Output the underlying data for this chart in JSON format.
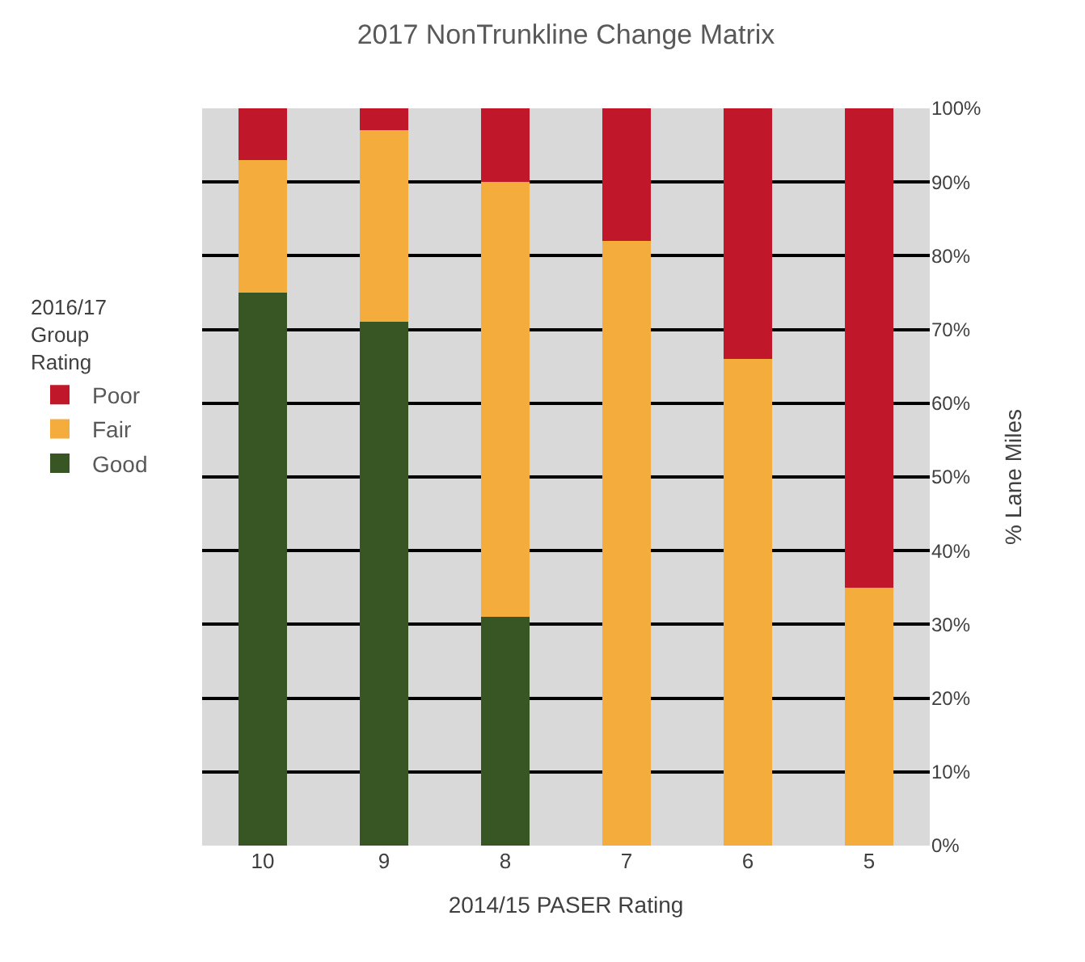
{
  "chart_data": {
    "type": "bar",
    "title": "2017 NonTrunkline Change Matrix",
    "xlabel": "2014/15 PASER Rating",
    "ylabel": "% Lane Miles",
    "legend_title": "2016/17\nGroup\nRating",
    "categories": [
      "10",
      "9",
      "8",
      "7",
      "6",
      "5"
    ],
    "stacked": true,
    "series": [
      {
        "name": "Good",
        "color": "#375623",
        "values": [
          75,
          71,
          31,
          0,
          0,
          0
        ]
      },
      {
        "name": "Fair",
        "color": "#f4ac3c",
        "values": [
          18,
          26,
          59,
          82,
          66,
          35
        ]
      },
      {
        "name": "Poor",
        "color": "#c0172b",
        "values": [
          7,
          3,
          10,
          18,
          34,
          65
        ]
      }
    ],
    "ylim": [
      0,
      100
    ],
    "yticks": [
      {
        "value": 0,
        "label": "0%"
      },
      {
        "value": 10,
        "label": "10%"
      },
      {
        "value": 20,
        "label": "20%"
      },
      {
        "value": 30,
        "label": "30%"
      },
      {
        "value": 40,
        "label": "40%"
      },
      {
        "value": 50,
        "label": "50%"
      },
      {
        "value": 60,
        "label": "60%"
      },
      {
        "value": 70,
        "label": "70%"
      },
      {
        "value": 80,
        "label": "80%"
      },
      {
        "value": 90,
        "label": "90%"
      },
      {
        "value": 100,
        "label": "100%"
      }
    ],
    "grid": "y",
    "legend": "left"
  }
}
